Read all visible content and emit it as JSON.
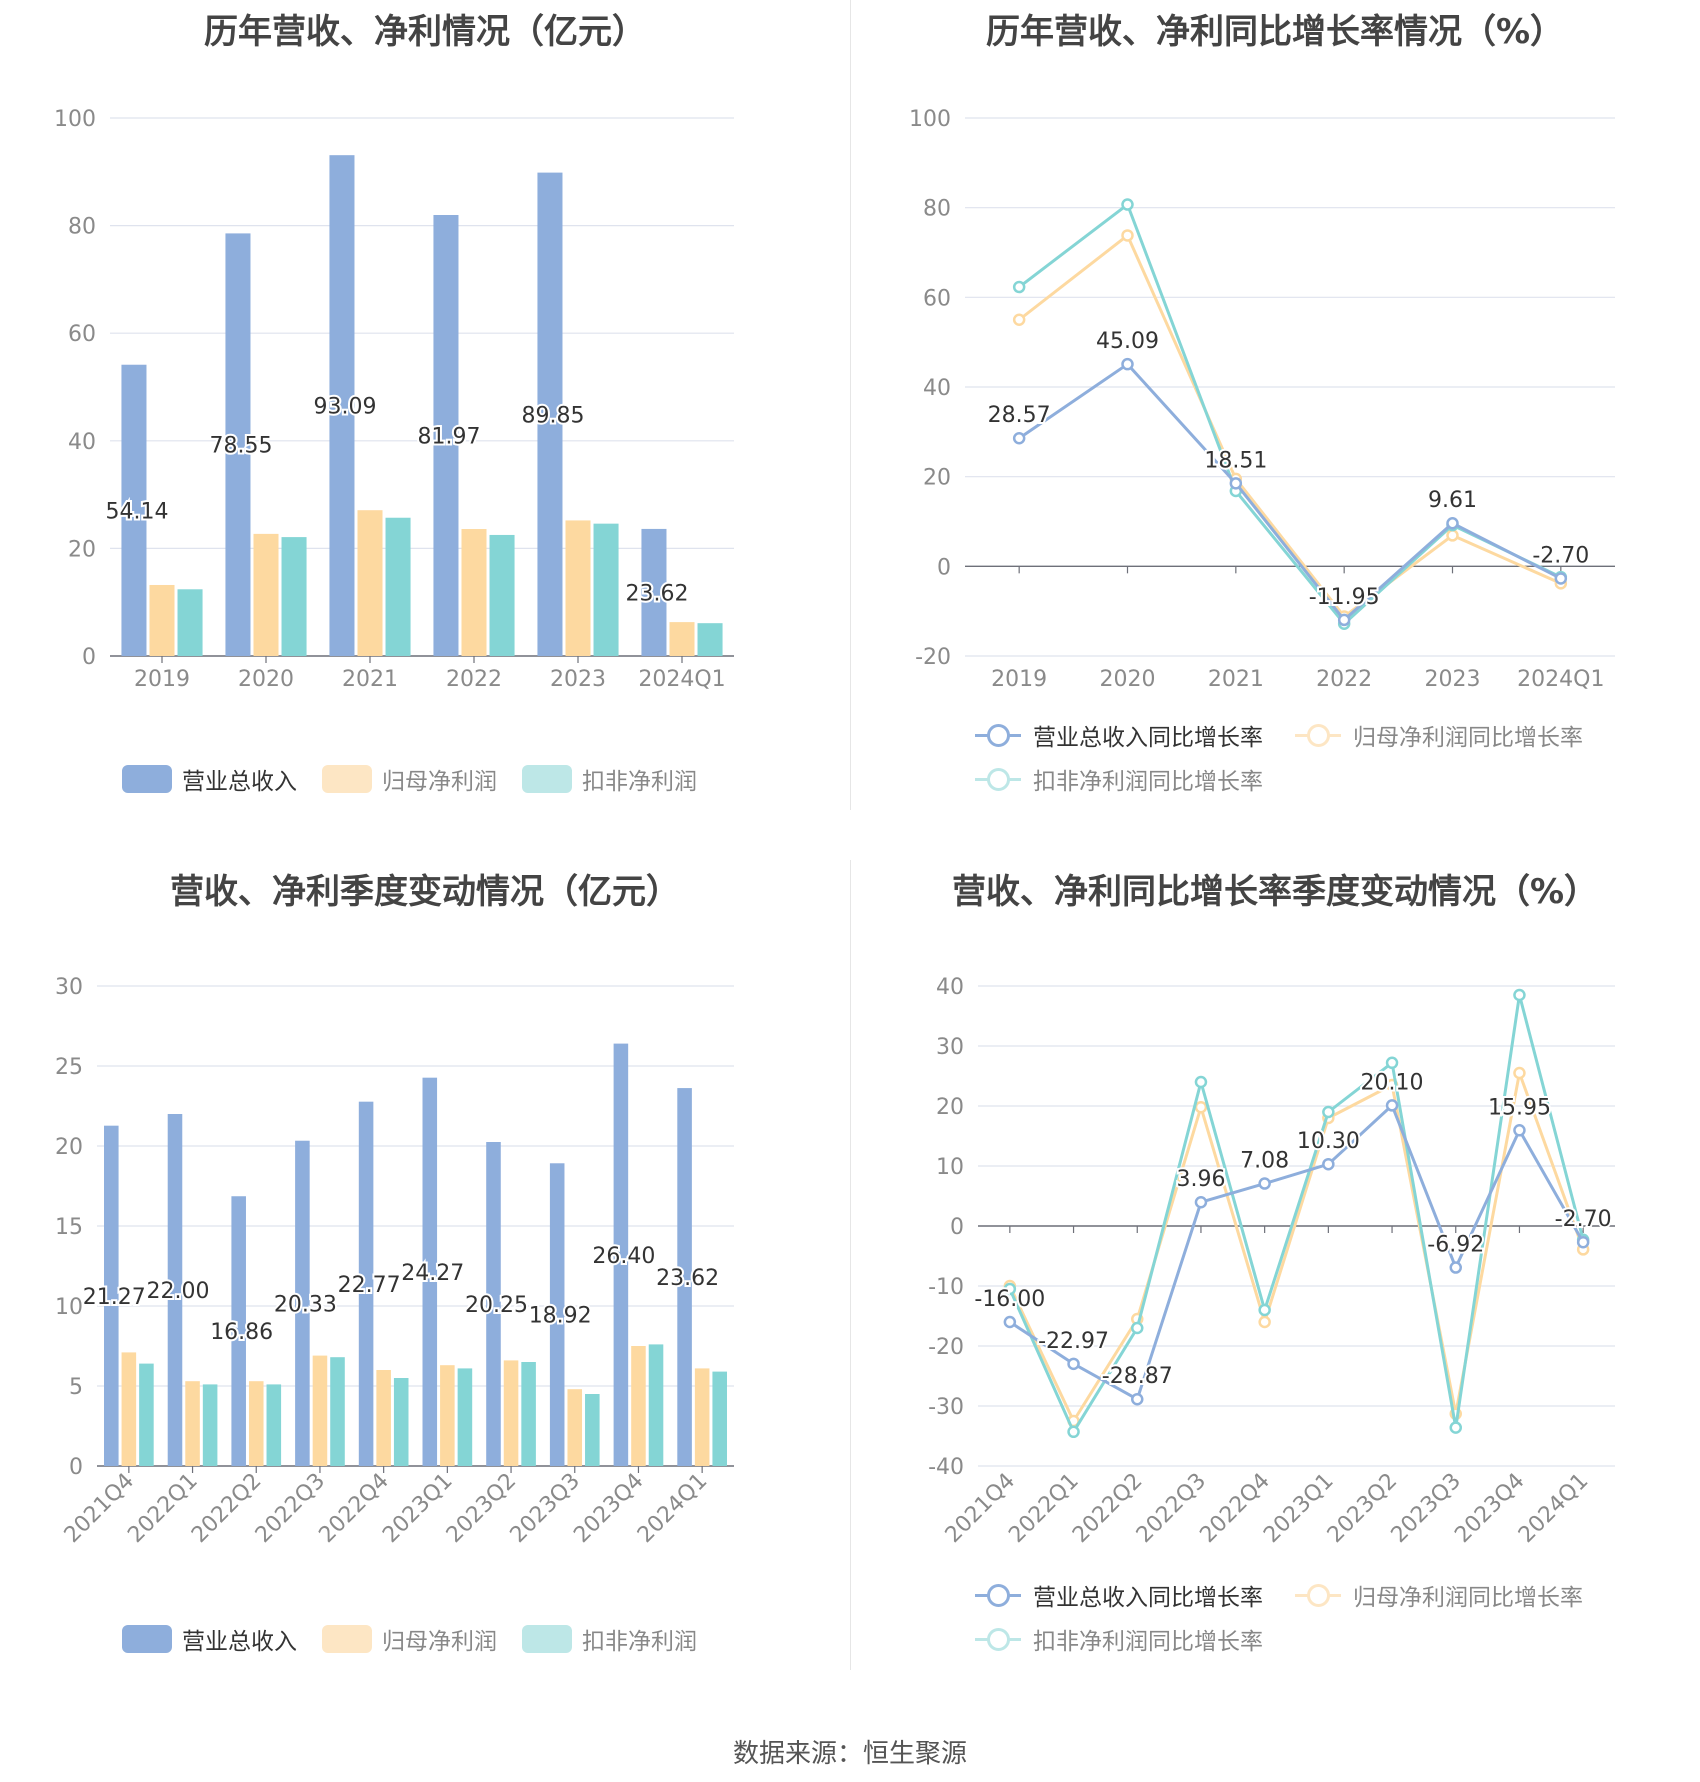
{
  "source": "数据来源：恒生聚源",
  "colors": {
    "revenue": "#8eaedc",
    "net": "#fdd9a0",
    "deducted": "#84d5d5"
  },
  "legend_bars": {
    "revenue": "营业总收入",
    "net": "归母净利润",
    "deducted": "扣非净利润"
  },
  "legend_lines": {
    "revenue": "营业总收入同比增长率",
    "net": "归母净利润同比增长率",
    "deducted": "扣非净利润同比增长率"
  },
  "chart_data": [
    {
      "type": "bar",
      "title": "历年营收、净利情况（亿元）",
      "categories": [
        "2019",
        "2020",
        "2021",
        "2022",
        "2023",
        "2024Q1"
      ],
      "ylim": [
        0,
        100
      ],
      "yticks": [
        "0",
        "20",
        "40",
        "60",
        "80",
        "100"
      ],
      "series": [
        {
          "name": "营业总收入",
          "values": [
            54.14,
            78.55,
            93.09,
            81.97,
            89.85,
            23.62
          ],
          "labels": [
            "54.14",
            "78.55",
            "93.09",
            "81.97",
            "89.85",
            "23.62"
          ]
        },
        {
          "name": "归母净利润",
          "values": [
            13.2,
            22.7,
            27.1,
            23.6,
            25.2,
            6.3
          ]
        },
        {
          "name": "扣非净利润",
          "values": [
            12.4,
            22.1,
            25.7,
            22.5,
            24.6,
            6.1
          ]
        }
      ],
      "grid": true,
      "legend": "bottom"
    },
    {
      "type": "line",
      "title": "历年营收、净利同比增长率情况（%）",
      "categories": [
        "2019",
        "2020",
        "2021",
        "2022",
        "2023",
        "2024Q1"
      ],
      "ylim": [
        -20,
        100
      ],
      "yticks": [
        "-20",
        "0",
        "20",
        "40",
        "60",
        "80",
        "100"
      ],
      "series": [
        {
          "name": "营业总收入同比增长率",
          "values": [
            28.57,
            45.09,
            18.51,
            -11.95,
            9.61,
            -2.7
          ],
          "labels": [
            "28.57",
            "45.09",
            "18.51",
            "-11.95",
            "9.61",
            "-2.70"
          ]
        },
        {
          "name": "归母净利润同比增长率",
          "values": [
            55.0,
            73.8,
            19.5,
            -11.2,
            6.9,
            -3.8
          ]
        },
        {
          "name": "扣非净利润同比增长率",
          "values": [
            62.3,
            80.7,
            16.8,
            -12.8,
            9.2,
            -2.4
          ]
        }
      ],
      "grid": true,
      "legend": "bottom"
    },
    {
      "type": "bar",
      "title": "营收、净利季度变动情况（亿元）",
      "categories": [
        "2021Q4",
        "2022Q1",
        "2022Q2",
        "2022Q3",
        "2022Q4",
        "2023Q1",
        "2023Q2",
        "2023Q3",
        "2023Q4",
        "2024Q1"
      ],
      "ylim": [
        0,
        30
      ],
      "yticks": [
        "0",
        "5",
        "10",
        "15",
        "20",
        "25",
        "30"
      ],
      "series": [
        {
          "name": "营业总收入",
          "values": [
            21.27,
            22.0,
            16.86,
            20.33,
            22.77,
            24.27,
            20.25,
            18.92,
            26.4,
            23.62
          ],
          "labels": [
            "21.27",
            "22.00",
            "16.86",
            "20.33",
            "22.77",
            "24.27",
            "20.25",
            "18.92",
            "26.40",
            "23.62"
          ]
        },
        {
          "name": "归母净利润",
          "values": [
            7.1,
            5.3,
            5.3,
            6.9,
            6.0,
            6.3,
            6.6,
            4.8,
            7.5,
            6.1
          ]
        },
        {
          "name": "扣非净利润",
          "values": [
            6.4,
            5.1,
            5.1,
            6.8,
            5.5,
            6.1,
            6.5,
            4.5,
            7.6,
            5.9
          ]
        }
      ],
      "grid": true,
      "legend": "bottom"
    },
    {
      "type": "line",
      "title": "营收、净利同比增长率季度变动情况（%）",
      "categories": [
        "2021Q4",
        "2022Q1",
        "2022Q2",
        "2022Q3",
        "2022Q4",
        "2023Q1",
        "2023Q2",
        "2023Q3",
        "2023Q4",
        "2024Q1"
      ],
      "ylim": [
        -40,
        40
      ],
      "yticks": [
        "-40",
        "-30",
        "-20",
        "-10",
        "0",
        "10",
        "20",
        "30",
        "40"
      ],
      "series": [
        {
          "name": "营业总收入同比增长率",
          "values": [
            -16.0,
            -22.97,
            -28.87,
            3.96,
            7.08,
            10.3,
            20.1,
            -6.92,
            15.95,
            -2.7
          ],
          "labels": [
            "-16.00",
            "-22.97",
            "-28.87",
            "3.96",
            "7.08",
            "10.30",
            "20.10",
            "-6.92",
            "15.95",
            "-2.70"
          ]
        },
        {
          "name": "归母净利润同比增长率",
          "values": [
            -10.0,
            -32.5,
            -15.5,
            19.8,
            -16.0,
            18.0,
            23.5,
            -31.3,
            25.5,
            -3.9
          ]
        },
        {
          "name": "扣非净利润同比增长率",
          "values": [
            -10.5,
            -34.3,
            -17.0,
            24.0,
            -14.0,
            19.0,
            27.2,
            -33.6,
            38.5,
            -2.3
          ]
        }
      ],
      "grid": true,
      "legend": "bottom"
    }
  ]
}
